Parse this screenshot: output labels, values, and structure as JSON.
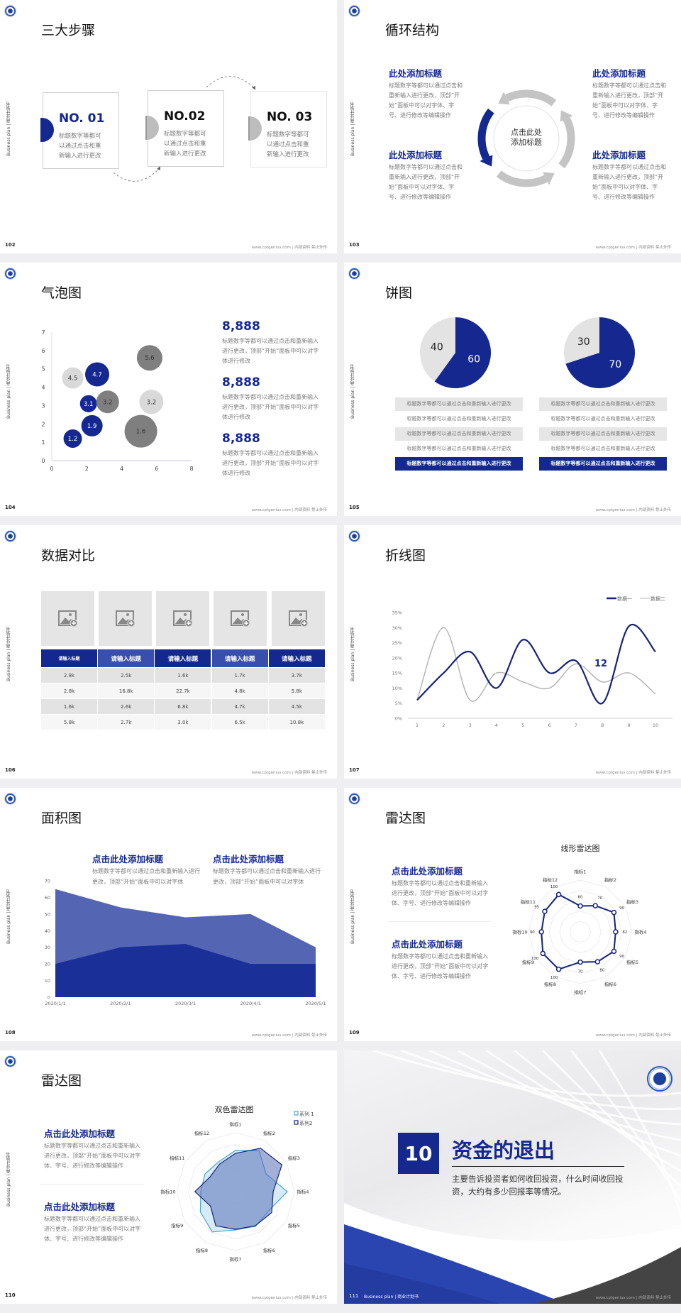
{
  "colors": {
    "primary": "#14288f",
    "gray": "#bdbdbd",
    "light_gray": "#e3e3e3",
    "dark_gray": "#7f7f7f",
    "series_light": "#45a5cc"
  },
  "common": {
    "sidebar_label": "Business plan | 商业计划书",
    "footer": "www.cptgenius.com | 内部资料 禁止外传",
    "logo_icon": "school-emblem-icon"
  },
  "slides": [
    {
      "type": "steps",
      "page": "102",
      "title": "三大步骤",
      "steps": [
        {
          "number": "NO. 01",
          "text": "标题数字等都可以通过点击和重新输入进行更改"
        },
        {
          "number": "NO.02",
          "text": "标题数字等都可以通过点击和重新输入进行更改"
        },
        {
          "number": "NO. 03",
          "text": "标题数字等都可以通过点击和重新输入进行更改"
        }
      ]
    },
    {
      "type": "cycle",
      "page": "103",
      "title": "循环结构",
      "center": "点击此处添加标题",
      "blocks": [
        {
          "heading": "此处添加标题",
          "text": "标题数字等都可以通过点击和重新输入进行更改，顶部“开始”面板中可以对字体、字号、进行修改等编辑操作"
        },
        {
          "heading": "此处添加标题",
          "text": "标题数字等都可以通过点击和重新输入进行更改，顶部“开始”面板中可以对字体、字号、进行修改等编辑操作"
        },
        {
          "heading": "此处添加标题",
          "text": "标题数字等都可以通过点击和重新输入进行更改，顶部“开始”面板中可以对字体、字号、进行修改等编辑操作"
        },
        {
          "heading": "此处添加标题",
          "text": "标题数字等都可以通过点击和重新输入进行更改，顶部“开始”面板中可以对字体、字号、进行修改等编辑操作"
        }
      ]
    },
    {
      "type": "bubble",
      "page": "104",
      "title": "气泡图",
      "chart": 0,
      "stats": [
        {
          "value": "8,888",
          "text": "标题数字等都可以通过点击和重新输入进行更改，顶部“开始”面板中可以对字体进行修改"
        },
        {
          "value": "8,888",
          "text": "标题数字等都可以通过点击和重新输入进行更改，顶部“开始”面板中可以对字体进行修改"
        },
        {
          "value": "8,888",
          "text": "标题数字等都可以通过点击和重新输入进行更改，顶部“开始”面板中可以对字体进行修改"
        }
      ]
    },
    {
      "type": "pies",
      "page": "105",
      "title": "饼图",
      "charts": [
        1,
        2
      ],
      "rows_left": [
        "标题数字等都可以通过点击和重新输入进行更改",
        "标题数字等都可以通过点击和重新输入进行更改",
        "标题数字等都可以通过点击和重新输入进行更改",
        "标题数字等都可以通过点击和重新输入进行更改",
        "标题数字等都可以通过点击和重新输入进行更改"
      ],
      "rows_right": [
        "标题数字等都可以通过点击和重新输入进行更改",
        "标题数字等都可以通过点击和重新输入进行更改",
        "标题数字等都可以通过点击和重新输入进行更改",
        "标题数字等都可以通过点击和重新输入进行更改",
        "标题数字等都可以通过点击和重新输入进行更改"
      ]
    },
    {
      "type": "table",
      "page": "106",
      "title": "数据对比",
      "image_icon": "image-add-icon",
      "headers": [
        "请输入标题",
        "请输入标题",
        "请输入标题",
        "请输入标题",
        "请输入标题"
      ],
      "rows": [
        [
          "2.8k",
          "2.5k",
          "1.6k",
          "1.7k",
          "3.7k"
        ],
        [
          "2.8k",
          "16.8k",
          "22.7k",
          "4.8k",
          "5.8k"
        ],
        [
          "1.6k",
          "2.6k",
          "6.8k",
          "4.7k",
          "4.5k"
        ],
        [
          "5.8k",
          "2.7k",
          "3.0k",
          "6.5k",
          "10.8k"
        ]
      ]
    },
    {
      "type": "line",
      "page": "107",
      "title": "折线图",
      "chart": 3,
      "annotation": "12"
    },
    {
      "type": "area",
      "page": "108",
      "title": "面积图",
      "chart": 4,
      "blocks": [
        {
          "heading": "点击此处添加标题",
          "text": "标题数字等都可以通过点击和重新输入进行更改，顶部“开始”面板中可以对字体"
        },
        {
          "heading": "点击此处添加标题",
          "text": "标题数字等都可以通过点击和重新输入进行更改，顶部“开始”面板中可以对字体"
        }
      ]
    },
    {
      "type": "radar",
      "page": "109",
      "title": "雷达图",
      "chart": 5,
      "blocks": [
        {
          "heading": "点击此处添加标题",
          "text": "标题数字等都可以通过点击和重新输入进行更改，顶部“开始”面板中可以对字体、字号、进行修改等编辑操作"
        },
        {
          "heading": "点击此处添加标题",
          "text": "标题数字等都可以通过点击和重新输入进行更改，顶部“开始”面板中可以对字体、字号、进行修改等编辑操作"
        }
      ]
    },
    {
      "type": "radar2",
      "page": "110",
      "title": "雷达图",
      "chart": 6,
      "blocks": [
        {
          "heading": "点击此处添加标题",
          "text": "标题数字等都可以通过点击和重新输入进行更改，顶部“开始”面板中可以对字体、字号、进行修改等编辑操作"
        },
        {
          "heading": "点击此处添加标题",
          "text": "标题数字等都可以通过点击和重新输入进行更改，顶部“开始”面板中可以对字体、字号、进行修改等编辑操作"
        }
      ]
    },
    {
      "type": "section",
      "page": "111",
      "number": "10",
      "title": "资金的退出",
      "description": "主要告诉投资者如何收回投资，什么时间收回投资，大约有多少回报率等情况。",
      "footer_left": "Business plan | 商业计划书"
    }
  ],
  "chart_data": [
    {
      "type": "scatter",
      "subtype": "bubble",
      "xlim": [
        0,
        8
      ],
      "ylim": [
        0,
        7
      ],
      "xticks": [
        0,
        2,
        4,
        6,
        8
      ],
      "yticks": [
        0,
        1,
        2,
        3,
        4,
        5,
        6,
        7
      ],
      "points": [
        {
          "x": 1.2,
          "y": 1.2,
          "size": 1.3,
          "color": "#14288f"
        },
        {
          "x": 2.3,
          "y": 1.9,
          "size": 1.5,
          "color": "#14288f"
        },
        {
          "x": 2.1,
          "y": 3.1,
          "size": 1.2,
          "color": "#14288f"
        },
        {
          "x": 2.6,
          "y": 4.7,
          "size": 1.7,
          "color": "#14288f"
        },
        {
          "x": 1.2,
          "y": 4.5,
          "size": 1.5,
          "color": "#d9d9d9"
        },
        {
          "x": 3.2,
          "y": 3.2,
          "size": 1.6,
          "color": "#7f7f7f"
        },
        {
          "x": 5.6,
          "y": 5.6,
          "size": 1.8,
          "color": "#7f7f7f"
        },
        {
          "x": 5.7,
          "y": 3.2,
          "size": 1.7,
          "color": "#d9d9d9"
        },
        {
          "x": 5.1,
          "y": 1.6,
          "size": 2.3,
          "color": "#7f7f7f"
        }
      ]
    },
    {
      "type": "pie",
      "values": [
        60,
        40
      ],
      "colors": [
        "#14288f",
        "#e3e3e3"
      ]
    },
    {
      "type": "pie",
      "values": [
        70,
        30
      ],
      "colors": [
        "#14288f",
        "#e3e3e3"
      ]
    },
    {
      "type": "line",
      "x": [
        1,
        2,
        3,
        4,
        5,
        6,
        7,
        8,
        9,
        10
      ],
      "ylim": [
        0,
        35
      ],
      "yticks": [
        "0%",
        "5%",
        "10%",
        "15%",
        "20%",
        "25%",
        "30%",
        "35%"
      ],
      "legend": "top-right",
      "series": [
        {
          "name": "数据一",
          "color": "#14237a",
          "values": [
            6,
            15,
            22,
            10,
            26,
            15,
            19,
            5,
            30.5,
            22
          ]
        },
        {
          "name": "数据二",
          "color": "#b5b5b5",
          "values": [
            6,
            30,
            6,
            15,
            12,
            10,
            18,
            12,
            15,
            8
          ]
        }
      ]
    },
    {
      "type": "area",
      "categories": [
        "2020/1/1",
        "2020/2/1",
        "2020/3/1",
        "2020/4/1",
        "2020/5/1"
      ],
      "ylim": [
        0,
        70
      ],
      "yticks": [
        0,
        10,
        20,
        30,
        40,
        50,
        60,
        70
      ],
      "series": [
        {
          "color": "#5466b3",
          "values": [
            65,
            54,
            48,
            50,
            30
          ]
        },
        {
          "color": "#1a2f98",
          "values": [
            20,
            30,
            32,
            20,
            20
          ]
        }
      ]
    },
    {
      "type": "radar",
      "title": "线形雷达图",
      "range": [
        0,
        120
      ],
      "axes": [
        "指标1",
        "指标2",
        "指标3",
        "指标4",
        "指标5",
        "指标6",
        "指标7",
        "指标8",
        "指标9",
        "指标10",
        "指标11",
        "指标12"
      ],
      "series": [
        {
          "color": "#14237a",
          "values": [
            60,
            70,
            90,
            82,
            90,
            80,
            70,
            100,
            100,
            90,
            95,
            100
          ]
        }
      ]
    },
    {
      "type": "radar",
      "title": "双色雷达图",
      "range": [
        0,
        100
      ],
      "legend": "top-right",
      "axes": [
        "指标1",
        "指标2",
        "指标3",
        "指标4",
        "指标5",
        "指标6",
        "指标7",
        "指标8",
        "指标9",
        "指标10",
        "指标11",
        "指标12"
      ],
      "series": [
        {
          "name": "系列 1",
          "color": "#45a5cc",
          "fill": "#cfe8f3",
          "values": [
            70,
            80,
            60,
            88,
            65,
            68,
            65,
            79,
            69,
            59,
            60,
            58
          ]
        },
        {
          "name": "系列2",
          "color": "#14237a",
          "fill": "#5a6fb8",
          "values": [
            65,
            85,
            91,
            64,
            71,
            67,
            64,
            67,
            49,
            69,
            50,
            54
          ]
        }
      ]
    }
  ]
}
